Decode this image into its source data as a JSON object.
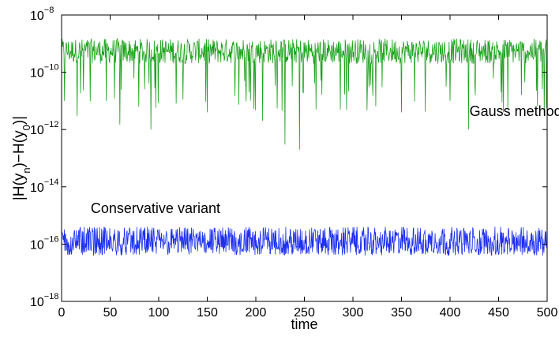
{
  "chart_data": {
    "type": "line",
    "title": "",
    "xlabel": "time",
    "ylabel_parts": [
      "|H(y",
      "n",
      ")−H(y",
      "0",
      ")|"
    ],
    "xlim": [
      0,
      500
    ],
    "ylim": [
      1e-18,
      1e-08
    ],
    "yscale": "log",
    "grid": false,
    "x_ticks": [
      0,
      50,
      100,
      150,
      200,
      250,
      300,
      350,
      400,
      450,
      500
    ],
    "x_tick_labels": [
      "0",
      "50",
      "100",
      "150",
      "200",
      "250",
      "300",
      "350",
      "400",
      "450",
      "500"
    ],
    "y_ticks": [
      1e-18,
      1e-16,
      1e-14,
      1e-12,
      1e-10,
      1e-08
    ],
    "y_tick_labels": [
      {
        "base": "10",
        "exp": "−18"
      },
      {
        "base": "10",
        "exp": "−16"
      },
      {
        "base": "10",
        "exp": "−14"
      },
      {
        "base": "10",
        "exp": "−12"
      },
      {
        "base": "10",
        "exp": "−10"
      },
      {
        "base": "10",
        "exp": "−8"
      }
    ],
    "series": [
      {
        "name": "Gauss method",
        "color": "#1ea21e",
        "typical_range": [
          2e-10,
          1.5e-09
        ],
        "dips": [
          {
            "x": 3,
            "y": 1e-11
          },
          {
            "x": 16,
            "y": 3e-12
          },
          {
            "x": 46,
            "y": 1e-11
          },
          {
            "x": 60,
            "y": 1.5e-12
          },
          {
            "x": 92,
            "y": 1e-12
          },
          {
            "x": 118,
            "y": 8e-12
          },
          {
            "x": 150,
            "y": 4e-12
          },
          {
            "x": 207,
            "y": 2e-12
          },
          {
            "x": 230,
            "y": 3e-13
          },
          {
            "x": 245,
            "y": 2e-13
          },
          {
            "x": 262,
            "y": 5e-12
          },
          {
            "x": 287,
            "y": 5e-12
          },
          {
            "x": 330,
            "y": 3e-11
          },
          {
            "x": 350,
            "y": 4e-12
          },
          {
            "x": 400,
            "y": 1e-11
          },
          {
            "x": 419,
            "y": 1e-12
          },
          {
            "x": 455,
            "y": 4e-12
          },
          {
            "x": 497,
            "y": 3e-12
          }
        ]
      },
      {
        "name": "Conservative variant",
        "color": "#1c2ff0",
        "typical_range": [
          4e-17,
          4e-16
        ]
      }
    ],
    "annotations": [
      {
        "text": "Gauss method",
        "x": 420,
        "y": 3e-12
      },
      {
        "text": "Conservative variant",
        "x": 30,
        "y": 1.2e-15
      }
    ]
  }
}
